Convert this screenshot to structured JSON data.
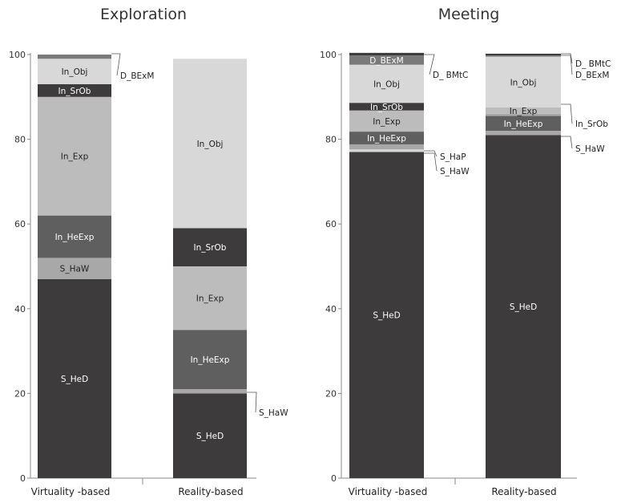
{
  "chart_data": [
    {
      "type": "bar",
      "stacked": true,
      "title": "Exploration",
      "categories": [
        "Virtuality -based",
        "Reality-based"
      ],
      "ylim": [
        0,
        100
      ],
      "yticks": [
        "0",
        "20",
        "40",
        "60",
        "80",
        "100"
      ],
      "grid": false,
      "bars": [
        {
          "category": "Virtuality -based",
          "segments": [
            {
              "label": "S_HeD",
              "value": 47,
              "color": "#3d3b3c"
            },
            {
              "label": "S_HaW",
              "value": 5,
              "color": "#a8a8a8"
            },
            {
              "label": "In_HeExp",
              "value": 10,
              "color": "#5f5f5f"
            },
            {
              "label": "In_Exp",
              "value": 28,
              "color": "#bcbcbc"
            },
            {
              "label": "In_SrOb",
              "value": 3,
              "color": "#3d3b3c"
            },
            {
              "label": "In_Obj",
              "value": 6,
              "color": "#d8d8d8"
            },
            {
              "label": "D_BExM",
              "value": 1,
              "color": "#7a7a7a",
              "outside": true
            }
          ]
        },
        {
          "category": "Reality-based",
          "segments": [
            {
              "label": "S_HeD",
              "value": 20,
              "color": "#3d3b3c"
            },
            {
              "label": "S_HaW",
              "value": 1,
              "color": "#a8a8a8",
              "outside": true
            },
            {
              "label": "In_HeExp",
              "value": 14,
              "color": "#5f5f5f"
            },
            {
              "label": "In_Exp",
              "value": 15,
              "color": "#bcbcbc"
            },
            {
              "label": "In_SrOb",
              "value": 9,
              "color": "#3d3b3c"
            },
            {
              "label": "In_Obj",
              "value": 40,
              "color": "#d8d8d8"
            }
          ]
        }
      ]
    },
    {
      "type": "bar",
      "stacked": true,
      "title": "Meeting",
      "categories": [
        "Virtuality -based",
        "Reality-based"
      ],
      "ylim": [
        0,
        100
      ],
      "yticks": [
        "0",
        "20",
        "40",
        "60",
        "80",
        "100"
      ],
      "grid": false,
      "bars": [
        {
          "category": "Virtuality -based",
          "segments": [
            {
              "label": "S_HeD",
              "value": 77,
              "color": "#3d3b3c"
            },
            {
              "label": "S_HaP",
              "value": 0.6,
              "color": "#d8d8d8",
              "outside": true
            },
            {
              "label": "S_HaW",
              "value": 1.2,
              "color": "#a8a8a8",
              "outside": true
            },
            {
              "label": "In_HeExp",
              "value": 3,
              "color": "#5f5f5f"
            },
            {
              "label": "In_Exp",
              "value": 5,
              "color": "#bcbcbc"
            },
            {
              "label": "In_SrOb",
              "value": 1.8,
              "color": "#3d3b3c"
            },
            {
              "label": "In_Obj",
              "value": 9,
              "color": "#d8d8d8"
            },
            {
              "label": "D_BExM",
              "value": 2.2,
              "color": "#7a7a7a"
            },
            {
              "label": "D_ BMtC",
              "value": 0.6,
              "color": "#3d3b3c",
              "outside": true
            }
          ]
        },
        {
          "category": "Reality-based",
          "segments": [
            {
              "label": "S_HeD",
              "value": 81,
              "color": "#3d3b3c"
            },
            {
              "label": "S_HaW",
              "value": 1,
              "color": "#a8a8a8",
              "outside": true
            },
            {
              "label": "In_HeExp",
              "value": 3.5,
              "color": "#5f5f5f"
            },
            {
              "label": "In_SrOb",
              "value": 0.5,
              "color": "#a8a8a8",
              "outside": true
            },
            {
              "label": "In_Exp",
              "value": 1.5,
              "color": "#bcbcbc"
            },
            {
              "label": "In_Obj",
              "value": 12,
              "color": "#d8d8d8"
            },
            {
              "label": "D_BExM",
              "value": 0.3,
              "color": "#7a7a7a",
              "outside": true
            },
            {
              "label": "D_ BMtC",
              "value": 0.4,
              "color": "#3d3b3c",
              "outside": true
            }
          ]
        }
      ]
    }
  ]
}
